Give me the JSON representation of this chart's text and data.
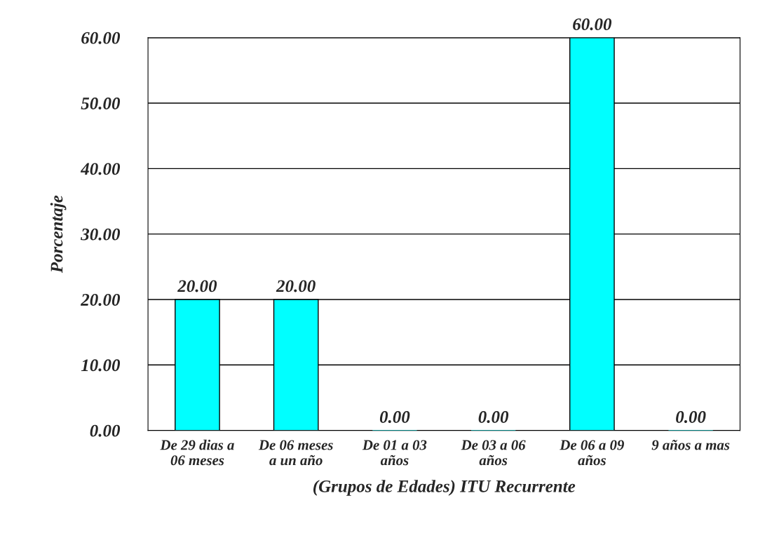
{
  "chart_data": {
    "type": "bar",
    "categories": [
      "De 29 dias a\n06 meses",
      "De 06 meses\na un año",
      "De 01 a 03\naños",
      "De 03 a 06\naños",
      "De 06 a 09\naños",
      "9 años a mas"
    ],
    "values": [
      20,
      20,
      0,
      0,
      60,
      0
    ],
    "value_labels": [
      "20.00",
      "20.00",
      "0.00",
      "0.00",
      "60.00",
      "0.00"
    ],
    "color": "#00ffff",
    "xlabel": "(Grupos de Edades) ITU Recurrente",
    "ylabel": "Porcentaje",
    "ylim": [
      0,
      60
    ],
    "yticks": [
      {
        "value": 0,
        "label": "0.00"
      },
      {
        "value": 10,
        "label": "10.00"
      },
      {
        "value": 20,
        "label": "20.00"
      },
      {
        "value": 30,
        "label": "30.00"
      },
      {
        "value": 40,
        "label": "40.00"
      },
      {
        "value": 50,
        "label": "50.00"
      },
      {
        "value": 60,
        "label": "60.00"
      }
    ],
    "grid": "y"
  }
}
